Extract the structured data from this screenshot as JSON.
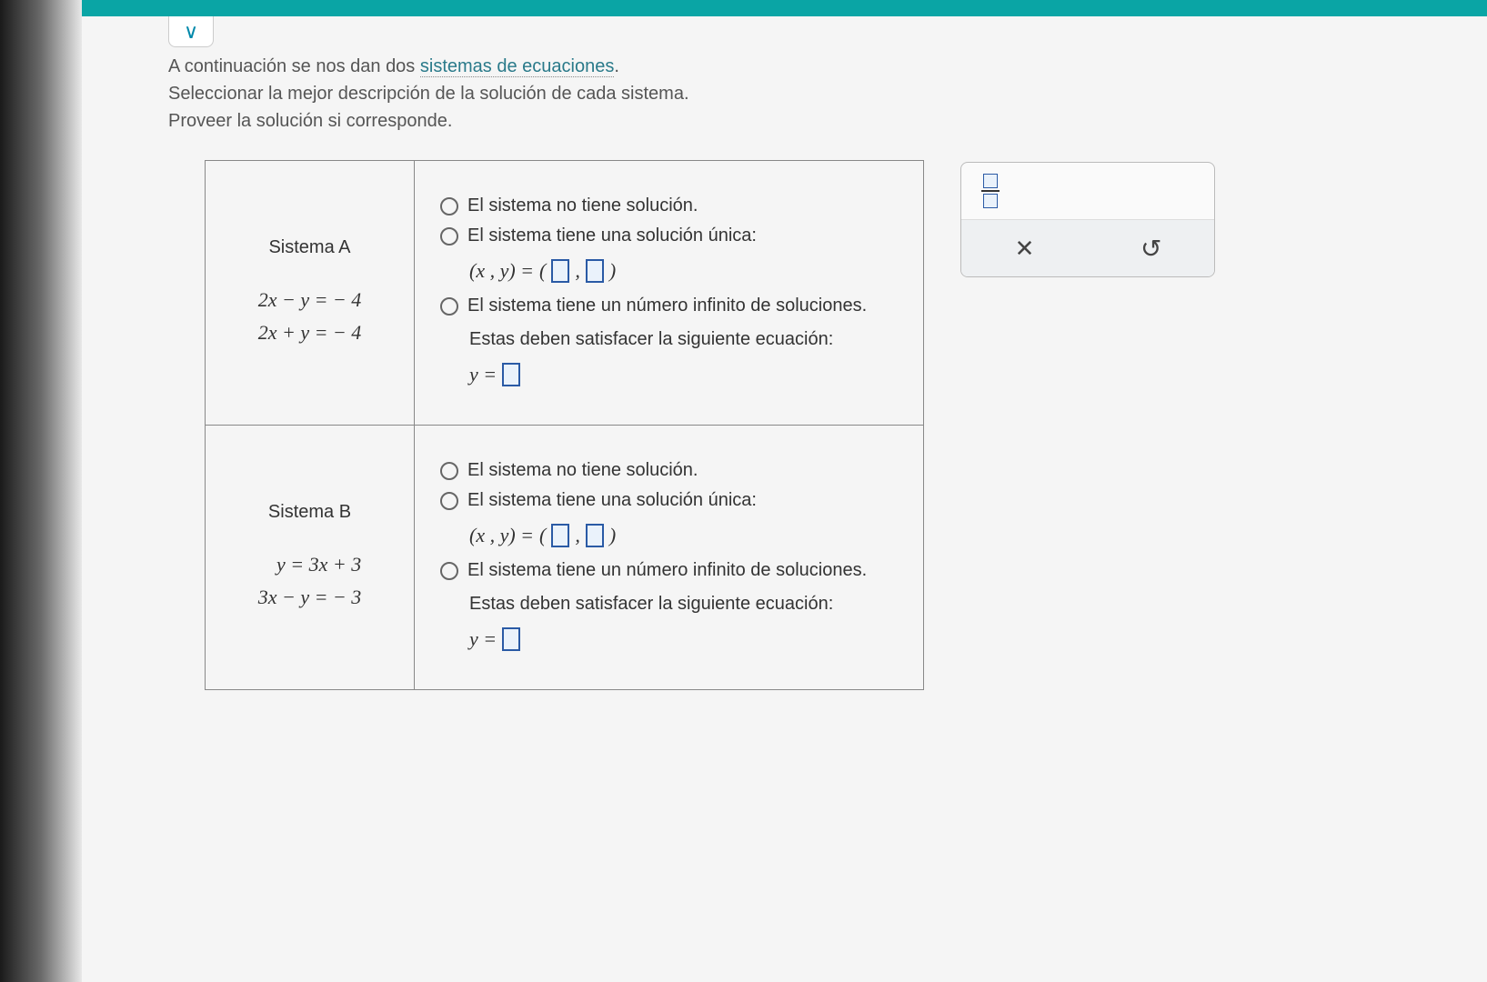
{
  "intro": {
    "line1_pre": "A continuación se nos dan dos ",
    "line1_link": "sistemas de ecuaciones",
    "line1_post": ".",
    "line2": "Seleccionar la mejor descripción de la solución de cada sistema.",
    "line3": "Proveer la solución si corresponde."
  },
  "options": {
    "no_solution": "El sistema no tiene solución.",
    "unique": "El sistema tiene una solución única:",
    "infinite": "El sistema tiene un número infinito de soluciones.",
    "satisfy": "Estas deben satisfacer la siguiente ecuación:",
    "xy_label": "(x , y) = ",
    "y_label": "y ="
  },
  "systems": [
    {
      "name": "Sistema A",
      "eq1": "2x − y = − 4",
      "eq2": "2x + y = − 4"
    },
    {
      "name": "Sistema B",
      "eq1": "y = 3x + 3",
      "eq2": "3x − y = − 3"
    }
  ],
  "panel": {
    "close": "✕",
    "undo": "↻"
  },
  "colors": {
    "topbar": "#0aa5a5",
    "border": "#888888",
    "text": "#333333",
    "link": "#2a7a8a",
    "blank_border": "#2a5aa5"
  }
}
